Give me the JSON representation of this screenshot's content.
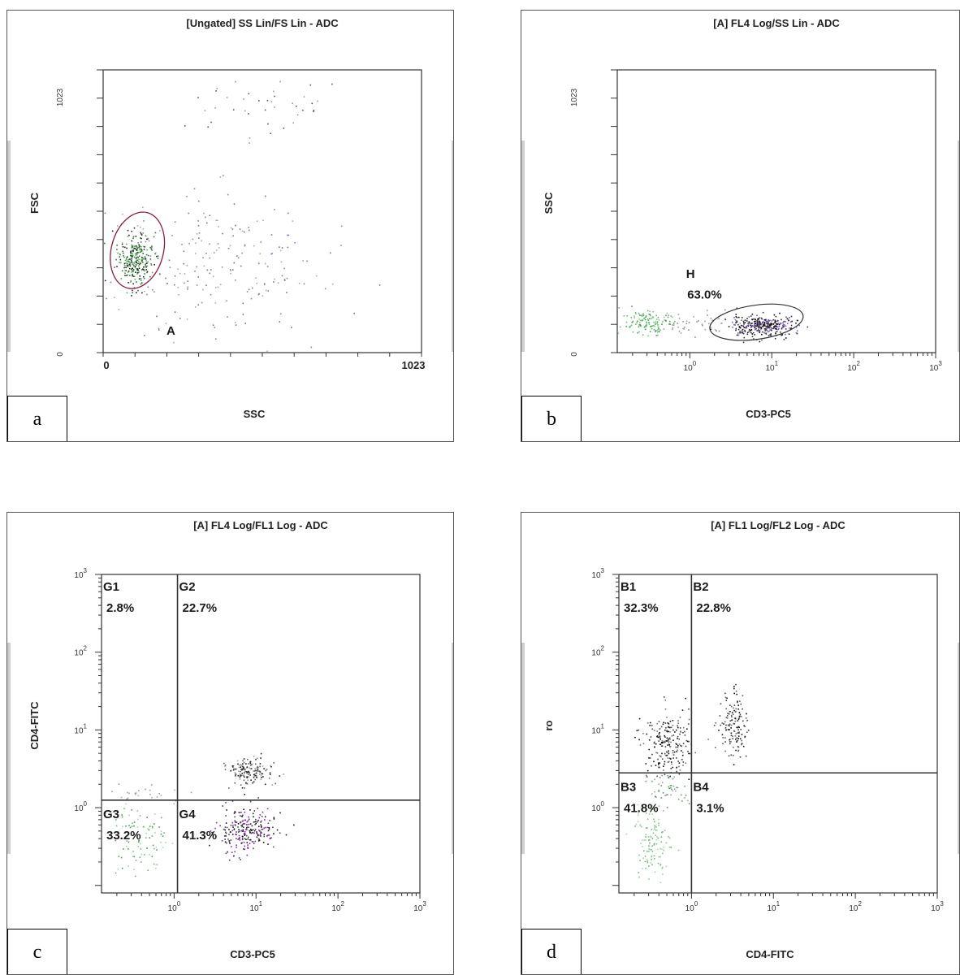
{
  "chart_data": [
    {
      "id": "a",
      "type": "scatter",
      "title": "[Ungated] SS Lin/FS Lin - ADC",
      "xlabel": "SSC",
      "ylabel": "FSC",
      "x_scale": "linear",
      "y_scale": "linear",
      "xlim": [
        0,
        1023
      ],
      "ylim": [
        0,
        1023
      ],
      "x_ticks": [
        "0",
        "1023"
      ],
      "y_ticks": [
        "0",
        "1023"
      ],
      "gates": [
        {
          "name": "A",
          "shape": "ellipse",
          "label": "A"
        }
      ],
      "clusters": [
        {
          "cx": 100,
          "cy": 340,
          "sx": 28,
          "sy": 50,
          "n": 260,
          "colors": [
            "#222222",
            "#2e7d32",
            "#4caf50"
          ]
        },
        {
          "cx": 330,
          "cy": 300,
          "sx": 170,
          "sy": 140,
          "n": 220,
          "colors": [
            "#777777",
            "#aaaaaa",
            "#9575cd"
          ]
        },
        {
          "cx": 500,
          "cy": 880,
          "sx": 140,
          "sy": 60,
          "n": 40,
          "colors": [
            "#555555",
            "#999999"
          ]
        }
      ],
      "panel_label": "a"
    },
    {
      "id": "b",
      "type": "scatter",
      "title": "[A] FL4 Log/SS Lin - ADC",
      "xlabel": "CD3-PC5",
      "ylabel": "SSC",
      "x_scale": "log",
      "y_scale": "linear",
      "xlim": [
        0.13,
        1000
      ],
      "ylim": [
        0,
        1023
      ],
      "x_ticks": [
        "10^0",
        "10^1",
        "10^2",
        "10^3"
      ],
      "y_ticks": [
        "0",
        "1023"
      ],
      "gates": [
        {
          "name": "H",
          "shape": "ellipse",
          "label": "H",
          "percent": "63.0%"
        }
      ],
      "clusters": [
        {
          "cx": 7.5,
          "cy": 100,
          "sx": 0.2,
          "sy": 18,
          "n": 320,
          "colors": [
            "#111111",
            "#333333",
            "#7e57c2"
          ]
        },
        {
          "cx": 0.32,
          "cy": 110,
          "sx": 0.18,
          "sy": 22,
          "n": 130,
          "colors": [
            "#66bb6a",
            "#81c784",
            "#43a047"
          ]
        },
        {
          "cx": 1.2,
          "cy": 105,
          "sx": 0.3,
          "sy": 20,
          "n": 40,
          "colors": [
            "#ba68c8",
            "#9e9e9e"
          ]
        }
      ],
      "panel_label": "b"
    },
    {
      "id": "c",
      "type": "scatter",
      "title": "[A] FL4 Log/FL1 Log - ADC",
      "xlabel": "CD3-PC5",
      "ylabel": "CD4-FITC",
      "x_scale": "log",
      "y_scale": "log",
      "xlim": [
        0.13,
        1000
      ],
      "ylim": [
        0.08,
        1000
      ],
      "x_ticks": [
        "10^0",
        "10^1",
        "10^2",
        "10^3"
      ],
      "y_ticks": [
        "10^0",
        "10^1",
        "10^2",
        "10^3"
      ],
      "quadrant_split": {
        "x": 1.1,
        "y": 1.25
      },
      "quadrants": [
        {
          "name": "G1",
          "percent": "2.8%"
        },
        {
          "name": "G2",
          "percent": "22.7%"
        },
        {
          "name": "G3",
          "percent": "33.2%"
        },
        {
          "name": "G4",
          "percent": "41.3%"
        }
      ],
      "clusters": [
        {
          "cx": 7.5,
          "cy": 0.5,
          "sx": 0.17,
          "sy": 0.15,
          "n": 240,
          "colors": [
            "#111111",
            "#444444",
            "#8e24aa"
          ]
        },
        {
          "cx": 8,
          "cy": 3.0,
          "sx": 0.15,
          "sy": 0.09,
          "n": 160,
          "colors": [
            "#222222",
            "#616161",
            "#9e9e9e"
          ]
        },
        {
          "cx": 0.35,
          "cy": 0.4,
          "sx": 0.2,
          "sy": 0.25,
          "n": 90,
          "colors": [
            "#66bb6a",
            "#a5d6a7",
            "#43a047"
          ]
        },
        {
          "cx": 0.5,
          "cy": 1.5,
          "sx": 0.2,
          "sy": 0.1,
          "n": 25,
          "colors": [
            "#ce93d8",
            "#9e9e9e"
          ]
        }
      ],
      "panel_label": "c"
    },
    {
      "id": "d",
      "type": "scatter",
      "title": "[A] FL1 Log/FL2 Log - ADC",
      "xlabel": "CD4-FITC",
      "ylabel": "ro",
      "x_scale": "log",
      "y_scale": "log",
      "xlim": [
        0.13,
        1000
      ],
      "ylim": [
        0.08,
        1000
      ],
      "x_ticks": [
        "10^0",
        "10^1",
        "10^2",
        "10^3"
      ],
      "y_ticks": [
        "10^0",
        "10^1",
        "10^2",
        "10^3"
      ],
      "quadrant_split": {
        "x": 1.0,
        "y": 2.8
      },
      "quadrants": [
        {
          "name": "B1",
          "percent": "32.3%"
        },
        {
          "name": "B2",
          "percent": "22.8%"
        },
        {
          "name": "B3",
          "percent": "41.8%"
        },
        {
          "name": "B4",
          "percent": "3.1%"
        }
      ],
      "clusters": [
        {
          "cx": 0.5,
          "cy": 6.5,
          "sx": 0.14,
          "sy": 0.22,
          "n": 220,
          "colors": [
            "#111111",
            "#424242",
            "#757575"
          ]
        },
        {
          "cx": 3.2,
          "cy": 11,
          "sx": 0.09,
          "sy": 0.22,
          "n": 140,
          "colors": [
            "#111111",
            "#424242",
            "#616161"
          ]
        },
        {
          "cx": 0.32,
          "cy": 0.4,
          "sx": 0.1,
          "sy": 0.25,
          "n": 120,
          "colors": [
            "#66bb6a",
            "#81c784",
            "#a5d6a7"
          ]
        },
        {
          "cx": 0.55,
          "cy": 1.6,
          "sx": 0.1,
          "sy": 0.12,
          "n": 40,
          "colors": [
            "#4caf50",
            "#9e9e9e"
          ]
        }
      ],
      "panel_label": "d"
    }
  ]
}
